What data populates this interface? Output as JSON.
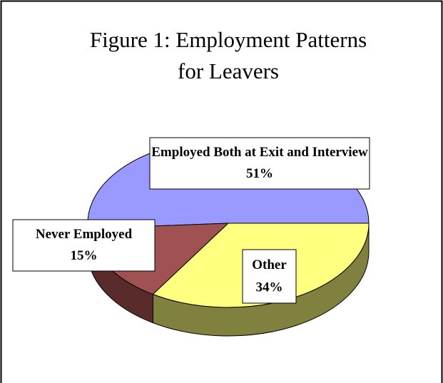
{
  "chart_data": {
    "type": "pie",
    "title": "Figure 1: Employment Patterns for Leavers",
    "categories": [
      "Employed Both at Exit and Interview",
      "Never Employed",
      "Other"
    ],
    "values": [
      51,
      15,
      34
    ],
    "value_labels": [
      "51%",
      "15%",
      "34%"
    ],
    "colors": [
      "#9999ff",
      "#a05252",
      "#ffff80"
    ],
    "side_colors": [
      "#55558f",
      "#5a2b2b",
      "#80803f"
    ]
  }
}
